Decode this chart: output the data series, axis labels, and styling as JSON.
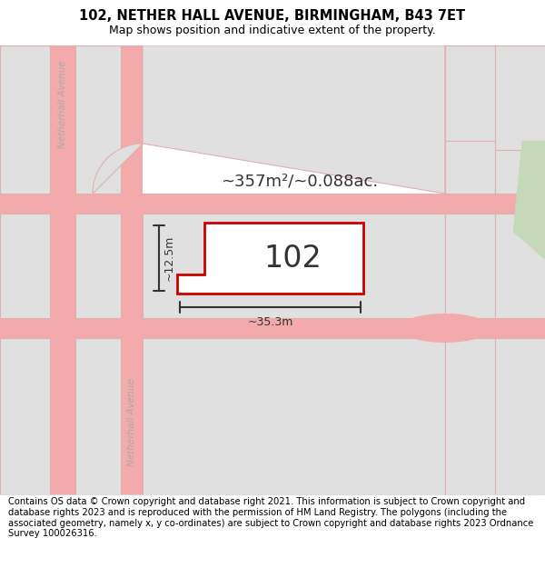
{
  "title_line1": "102, NETHER HALL AVENUE, BIRMINGHAM, B43 7ET",
  "title_line2": "Map shows position and indicative extent of the property.",
  "footer_text": "Contains OS data © Crown copyright and database right 2021. This information is subject to Crown copyright and database rights 2023 and is reproduced with the permission of HM Land Registry. The polygons (including the associated geometry, namely x, y co-ordinates) are subject to Crown copyright and database rights 2023 Ordnance Survey 100026316.",
  "area_label": "~357m²/~0.088ac.",
  "property_number": "102",
  "dim_width": "~35.3m",
  "dim_height": "~12.5m",
  "bg_color": "#ffffff",
  "map_bg": "#ffffff",
  "road_stroke": "#f2aaaa",
  "road_fill": "#f2aaaa",
  "building_fill": "#e0e0e0",
  "building_edge": "#e0b0b0",
  "highlight_fill": "#ffffff",
  "highlight_edge": "#cc0000",
  "green_fill": "#c5d9b8",
  "green_edge": "#c5d9b8",
  "street_label_color": "#aaaaaa",
  "dim_color": "#333333",
  "title_fontsize": 10.5,
  "subtitle_fontsize": 9,
  "footer_fontsize": 7.2,
  "number_fontsize": 24,
  "area_fontsize": 13
}
